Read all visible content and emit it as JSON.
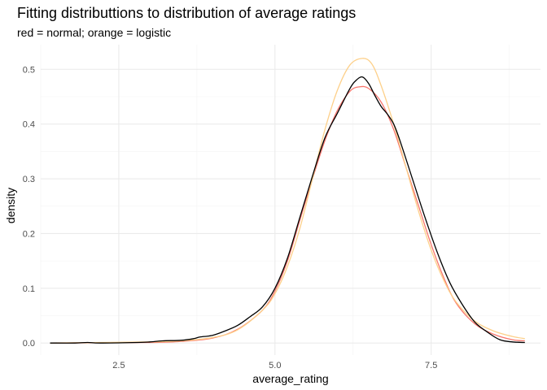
{
  "chart_data": {
    "type": "line",
    "title": "Fitting distributtions to distribution of average ratings",
    "subtitle": "red = normal; orange = logistic",
    "xlabel": "average_rating",
    "ylabel": "density",
    "xlim": [
      1.25,
      9.25
    ],
    "ylim": [
      -0.022,
      0.545
    ],
    "x_ticks": [
      2.5,
      5.0,
      7.5
    ],
    "x_tick_labels": [
      "2.5",
      "5.0",
      "7.5"
    ],
    "y_ticks": [
      0.0,
      0.1,
      0.2,
      0.3,
      0.4,
      0.5
    ],
    "y_tick_labels": [
      "0.0",
      "0.1",
      "0.2",
      "0.3",
      "0.4",
      "0.5"
    ],
    "grid": true,
    "legend": "none",
    "series": [
      {
        "color": "#f8766d",
        "x": [
          1.4,
          3.0,
          3.5,
          4.0,
          4.4,
          4.8,
          5.0,
          5.2,
          5.4,
          5.6,
          5.8,
          6.0,
          6.2,
          6.35,
          6.5,
          6.7,
          6.9,
          7.1,
          7.3,
          7.5,
          7.7,
          7.9,
          8.2,
          8.5,
          8.8,
          9.0
        ],
        "y": [
          0.0,
          0.001,
          0.003,
          0.009,
          0.025,
          0.06,
          0.095,
          0.15,
          0.225,
          0.3,
          0.37,
          0.425,
          0.46,
          0.468,
          0.465,
          0.44,
          0.39,
          0.32,
          0.25,
          0.18,
          0.12,
          0.073,
          0.035,
          0.016,
          0.006,
          0.004
        ]
      },
      {
        "color": "#fdd08a",
        "x": [
          1.4,
          3.0,
          3.5,
          4.0,
          4.4,
          4.8,
          5.0,
          5.2,
          5.4,
          5.6,
          5.8,
          6.0,
          6.2,
          6.4,
          6.55,
          6.7,
          6.9,
          7.1,
          7.3,
          7.5,
          7.7,
          7.9,
          8.2,
          8.5,
          8.8,
          9.0
        ],
        "y": [
          0.0,
          0.002,
          0.004,
          0.01,
          0.024,
          0.06,
          0.09,
          0.14,
          0.21,
          0.3,
          0.39,
          0.462,
          0.508,
          0.52,
          0.51,
          0.47,
          0.4,
          0.32,
          0.24,
          0.17,
          0.115,
          0.075,
          0.04,
          0.022,
          0.012,
          0.008
        ]
      },
      {
        "color": "#000000",
        "x": [
          1.4,
          1.8,
          2.0,
          2.2,
          2.8,
          3.0,
          3.2,
          3.5,
          3.7,
          3.8,
          4.0,
          4.2,
          4.4,
          4.6,
          4.8,
          5.0,
          5.2,
          5.4,
          5.6,
          5.8,
          6.0,
          6.2,
          6.3,
          6.4,
          6.5,
          6.6,
          6.7,
          6.8,
          6.9,
          7.0,
          7.2,
          7.4,
          7.6,
          7.8,
          8.0,
          8.2,
          8.4,
          8.6,
          8.8,
          9.0
        ],
        "y": [
          0.0,
          0.0,
          0.001,
          0.0,
          0.001,
          0.002,
          0.004,
          0.005,
          0.008,
          0.011,
          0.014,
          0.022,
          0.032,
          0.048,
          0.066,
          0.1,
          0.155,
          0.23,
          0.305,
          0.375,
          0.42,
          0.465,
          0.48,
          0.486,
          0.474,
          0.452,
          0.432,
          0.418,
          0.4,
          0.37,
          0.3,
          0.23,
          0.165,
          0.11,
          0.07,
          0.038,
          0.02,
          0.006,
          0.002,
          0.001
        ]
      }
    ]
  }
}
